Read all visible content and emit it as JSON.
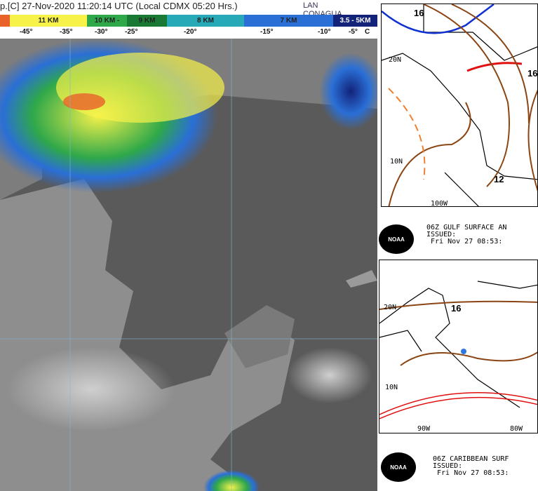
{
  "satellite": {
    "title": "p.[C] 27-Nov-2020 11:20:14 UTC (Local CDMX  05:20 Hrs.)",
    "logos": [
      "LAN",
      "CONAGUA"
    ],
    "colorbar": [
      {
        "label": "",
        "color": "#e8622a"
      },
      {
        "label": "11 KM",
        "color": "#f6f24a"
      },
      {
        "label": "10 KM -",
        "color": "#2fa84a"
      },
      {
        "label": "9 KM",
        "color": "#1a7a35"
      },
      {
        "label": "8 KM",
        "color": "#27a9b8"
      },
      {
        "label": "7 KM",
        "color": "#2a6fd6"
      },
      {
        "label": "3.5 - 5KM",
        "color": "#13237a"
      }
    ],
    "temps": [
      "-45°",
      "-35°",
      "-30°",
      "-25°",
      "-20°",
      "-15°",
      "-10°",
      "-5°",
      "C"
    ]
  },
  "gulf_map": {
    "labels": {
      "high_low_1": "16",
      "high_low_2": "12",
      "high_low_3": "16",
      "lat_20": "20N",
      "lat_10": "10N",
      "lon_100": "100W"
    },
    "header": {
      "line1": "06Z GULF SURFACE AN",
      "line2": "ISSUED:",
      "line3": " Fri Nov 27 08:53:"
    },
    "logo": "NOAA"
  },
  "caribbean_map": {
    "labels": {
      "high_low": "16",
      "lat_20": "20N",
      "lat_10": "10N",
      "lon_90": "90W",
      "lon_80": "80W"
    },
    "header": {
      "line1": "06Z CARIBBEAN SURF",
      "line2": "ISSUED:",
      "line3": " Fri Nov 27 08:53:"
    },
    "logo": "NOAA"
  }
}
